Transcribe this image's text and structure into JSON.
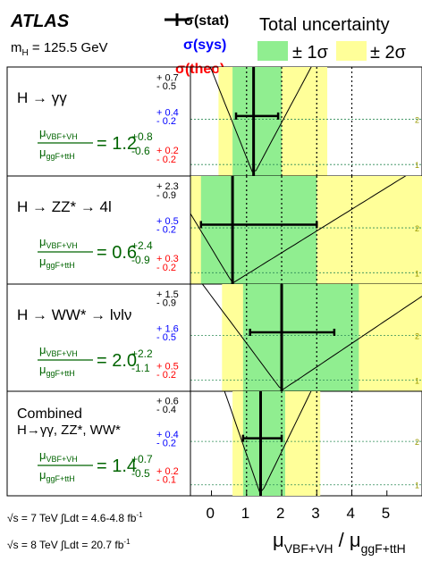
{
  "header": {
    "experiment": "ATLAS",
    "mass_prefix": "m",
    "mass_sub": "H",
    "mass_value": " = 125.5 GeV"
  },
  "legend": {
    "stat": "σ(stat)",
    "sys": "σ(sys)",
    "theo": "σ(theo)",
    "total_title": "Total uncertainty",
    "one_sigma": "± 1σ",
    "two_sigma": "± 2σ"
  },
  "colors": {
    "one_sigma_band": "#90ee90",
    "two_sigma_band": "#ffff99",
    "sys_text": "#0000ff",
    "theo_text": "#ff0000",
    "result_text": "#006400",
    "sigma_line_text": "#999900",
    "sigma_line": "#2e8b57"
  },
  "sigma_labels": [
    "2",
    "1"
  ],
  "energy_notes": [
    {
      "pre": "√s = 7 TeV ∫Ldt = 4.6-4.8 fb",
      "sup": "-1"
    },
    {
      "pre": "√s = 8 TeV ∫Ldt = 20.7 fb",
      "sup": "-1"
    }
  ],
  "chart_data": {
    "type": "scatter",
    "xlabel": "μVBF+VH / μggF+ttH",
    "xlim": [
      -0.6,
      6.0
    ],
    "xticks": [
      0,
      1,
      2,
      3,
      4,
      5
    ],
    "grid": "dotted vertical lines at x=1,2,3,4",
    "ratio": {
      "num": "μ",
      "num_sub": "VBF+VH",
      "den": "μ",
      "den_sub": "ggF+ttH"
    },
    "panels": [
      {
        "title": "H → γγ",
        "value": 1.2,
        "value_text": "1.2",
        "err_up": "+0.8",
        "err_down": "-0.6",
        "stat": [
          "+ 0.7",
          "- 0.5"
        ],
        "sys": [
          "+ 0.4",
          "- 0.2"
        ],
        "theo": [
          "+ 0.2",
          "- 0.2"
        ],
        "stat_interval": [
          0.7,
          1.9
        ],
        "one_sigma": [
          0.6,
          2.0
        ],
        "two_sigma": [
          0.2,
          3.3
        ]
      },
      {
        "title": "H → ZZ* → 4l",
        "value": 0.6,
        "value_text": "0.6",
        "err_up": "+2.4",
        "err_down": "-0.9",
        "stat": [
          "+ 2.3",
          "- 0.9"
        ],
        "sys": [
          "+ 0.5",
          "- 0.2"
        ],
        "theo": [
          "+ 0.3",
          "- 0.2"
        ],
        "stat_interval": [
          -0.3,
          3.0
        ],
        "one_sigma": [
          -0.3,
          3.0
        ],
        "two_sigma": [
          -0.6,
          6.0
        ]
      },
      {
        "title": "H → WW* → lνlν",
        "value": 2.0,
        "value_text": "2.0",
        "err_up": "+2.2",
        "err_down": "-1.1",
        "stat": [
          "+ 1.5",
          "- 0.9"
        ],
        "sys": [
          "+ 1.6",
          "- 0.5"
        ],
        "theo": [
          "+ 0.5",
          "- 0.2"
        ],
        "stat_interval": [
          1.1,
          3.5
        ],
        "one_sigma": [
          0.9,
          4.2
        ],
        "two_sigma": [
          0.3,
          6.0
        ]
      },
      {
        "title_lines": [
          "Combined",
          "H→γγ, ZZ*, WW*"
        ],
        "value": 1.4,
        "value_text": "1.4",
        "err_up": "+0.7",
        "err_down": "-0.5",
        "stat": [
          "+ 0.6",
          "- 0.4"
        ],
        "sys": [
          "+ 0.4",
          "- 0.2"
        ],
        "theo": [
          "+ 0.2",
          "- 0.1"
        ],
        "stat_interval": [
          0.9,
          2.0
        ],
        "one_sigma": [
          0.9,
          2.1
        ],
        "two_sigma": [
          0.6,
          3.1
        ]
      }
    ]
  }
}
